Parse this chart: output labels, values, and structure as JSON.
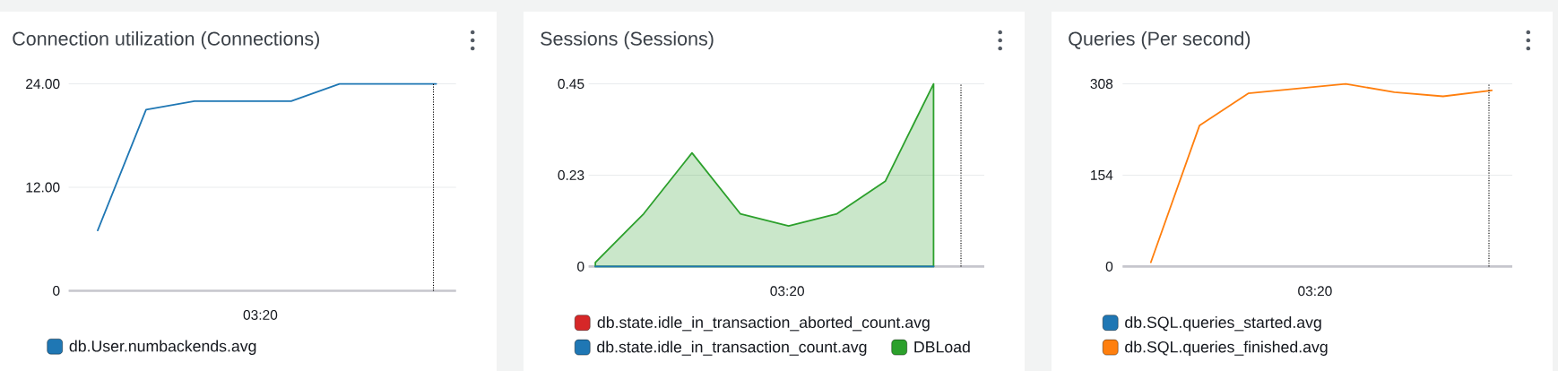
{
  "chart_data": [
    {
      "type": "line",
      "title": "Connection utilization (Connections)",
      "categories": [
        null,
        null,
        null,
        null,
        null,
        null,
        null,
        null
      ],
      "series": [
        {
          "name": "db.User.numbackends.avg",
          "color": "#1f77b4",
          "values": [
            7,
            21,
            22,
            22,
            22,
            24,
            24,
            24
          ]
        }
      ],
      "ylim": [
        0,
        24
      ],
      "yticks": [
        0,
        {
          "value": 12,
          "label": "12.00"
        },
        {
          "value": 24,
          "label": "24.00"
        }
      ],
      "grid": true,
      "legend": "bottom",
      "annotations": [
        "03:20"
      ]
    },
    {
      "type": "line",
      "title": "Sessions (Sessions)",
      "categories": [
        null,
        null,
        null,
        null,
        null,
        null,
        null,
        null
      ],
      "series": [
        {
          "name": "db.state.idle_in_transaction_aborted_count.avg",
          "color": "#d62728",
          "values": [
            null,
            null,
            null,
            null,
            null,
            null,
            null,
            null
          ]
        },
        {
          "name": "db.state.idle_in_transaction_count.avg",
          "color": "#1f77b4",
          "values": [
            0,
            0,
            0,
            0,
            0,
            0,
            0,
            0
          ]
        },
        {
          "name": "DBLoad",
          "type": "area",
          "color": "#2ca02c",
          "values": [
            0.01,
            0.13,
            0.28,
            0.13,
            0.1,
            0.13,
            0.21,
            0.45
          ]
        }
      ],
      "ylim": [
        0,
        0.45
      ],
      "yticks": [
        0,
        {
          "value": 0.225,
          "label": "0.23"
        },
        0.45
      ],
      "grid": true,
      "legend": "bottom",
      "annotations": [
        "03:20"
      ]
    },
    {
      "type": "line",
      "title": "Queries (Per second)",
      "categories": [
        null,
        null,
        null,
        null,
        null,
        null,
        null,
        null
      ],
      "series": [
        {
          "name": "db.SQL.queries_started.avg",
          "color": "#1f77b4",
          "values": [
            null,
            null,
            null,
            null,
            null,
            null,
            null,
            null
          ]
        },
        {
          "name": "db.SQL.queries_finished.avg",
          "color": "#ff7f0e",
          "values": [
            7,
            238,
            292,
            300,
            308,
            294,
            287,
            297
          ]
        }
      ],
      "ylim": [
        0,
        308
      ],
      "yticks": [
        0,
        154,
        308
      ],
      "grid": true,
      "legend": "bottom",
      "annotations": [
        "03:20"
      ]
    }
  ]
}
